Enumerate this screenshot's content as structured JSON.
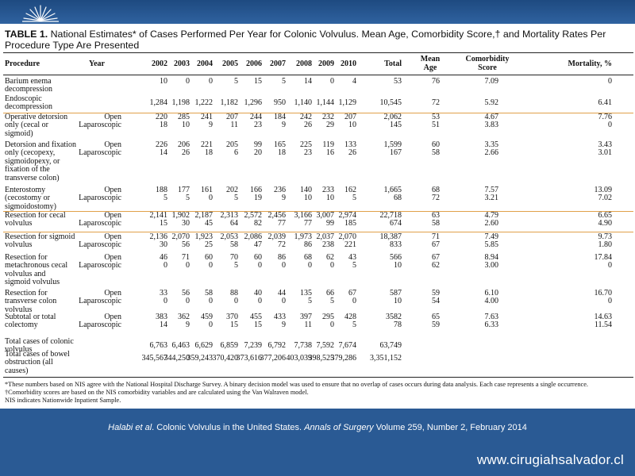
{
  "table": {
    "number": "TABLE 1.",
    "title": "National Estimates* of Cases Performed Per Year for Colonic Volvulus. Mean Age, Comorbidity Score,† and Mortality Rates Per Procedure Type Are Presented",
    "headers": {
      "procedure": "Procedure",
      "year": "Year",
      "years": [
        "2002",
        "2003",
        "2004",
        "2005",
        "2006",
        "2007",
        "2008",
        "2009",
        "2010"
      ],
      "total": "Total",
      "mean_age": "Mean\nAge",
      "comorbidity": "Comorbidity\nScore",
      "mortality": "Mortality, %"
    },
    "rows": [
      {
        "procedure": "Barium enema\ndecompression",
        "types": [
          ""
        ],
        "values": [
          [
            "10",
            "0",
            "0",
            "5",
            "15",
            "5",
            "14",
            "0",
            "4"
          ]
        ],
        "total": [
          "53"
        ],
        "age": [
          "76"
        ],
        "comorbidity": [
          "7.09"
        ],
        "mortality": [
          "0"
        ]
      },
      {
        "procedure": "Endoscopic\ndecompression",
        "types": [
          ""
        ],
        "values": [
          [
            "1,284",
            "1,198",
            "1,222",
            "1,182",
            "1,296",
            "950",
            "1,140",
            "1,144",
            "1,129"
          ]
        ],
        "total": [
          "10,545"
        ],
        "age": [
          "72"
        ],
        "comorbidity": [
          "5.92"
        ],
        "mortality": [
          "6.41"
        ]
      },
      {
        "procedure": "Operative detorsion\nonly (cecal or\nsigmoid)",
        "types": [
          "Open",
          "Laparoscopic"
        ],
        "values": [
          [
            "220",
            "285",
            "241",
            "207",
            "244",
            "184",
            "242",
            "232",
            "207"
          ],
          [
            "18",
            "10",
            "9",
            "11",
            "23",
            "9",
            "26",
            "29",
            "10"
          ]
        ],
        "total": [
          "2,062",
          "145"
        ],
        "age": [
          "53",
          "51"
        ],
        "comorbidity": [
          "4.67",
          "3.83"
        ],
        "mortality": [
          "7.76",
          "0"
        ]
      },
      {
        "procedure": "Detorsion and fixation\nonly (cecopexy,\nsigmoidopexy, or\nfixation of the\ntransverse colon)",
        "types": [
          "Open",
          "Laparoscopic"
        ],
        "values": [
          [
            "226",
            "206",
            "221",
            "205",
            "99",
            "165",
            "225",
            "119",
            "133"
          ],
          [
            "14",
            "26",
            "18",
            "6",
            "20",
            "18",
            "23",
            "16",
            "26"
          ]
        ],
        "total": [
          "1,599",
          "167"
        ],
        "age": [
          "60",
          "58"
        ],
        "comorbidity": [
          "3.35",
          "2.66"
        ],
        "mortality": [
          "3.43",
          "3.01"
        ]
      },
      {
        "procedure": "Enterostomy\n(cecostomy or\nsigmoidostomy)",
        "types": [
          "Open",
          "Laparoscopic"
        ],
        "values": [
          [
            "188",
            "177",
            "161",
            "202",
            "166",
            "236",
            "140",
            "233",
            "162"
          ],
          [
            "5",
            "5",
            "0",
            "5",
            "19",
            "9",
            "10",
            "10",
            "5"
          ]
        ],
        "total": [
          "1,665",
          "68"
        ],
        "age": [
          "68",
          "72"
        ],
        "comorbidity": [
          "7.57",
          "3.21"
        ],
        "mortality": [
          "13.09",
          "7.02"
        ]
      },
      {
        "procedure": "Resection for cecal\nvolvulus",
        "types": [
          "Open",
          "Laparoscopic"
        ],
        "values": [
          [
            "2,141",
            "1,902",
            "2,187",
            "2,313",
            "2,572",
            "2,456",
            "3,166",
            "3,007",
            "2,974"
          ],
          [
            "15",
            "30",
            "45",
            "64",
            "82",
            "77",
            "77",
            "99",
            "185"
          ]
        ],
        "total": [
          "22,718",
          "674"
        ],
        "age": [
          "63",
          "58"
        ],
        "comorbidity": [
          "4.79",
          "2.60"
        ],
        "mortality": [
          "6.65",
          "4.90"
        ]
      },
      {
        "procedure": "Resection for sigmoid\nvolvulus",
        "types": [
          "Open",
          "Laparoscopic"
        ],
        "values": [
          [
            "2,136",
            "2,070",
            "1,923",
            "2,053",
            "2,086",
            "2,039",
            "1,973",
            "2,037",
            "2,070"
          ],
          [
            "30",
            "56",
            "25",
            "58",
            "47",
            "72",
            "86",
            "238",
            "221"
          ]
        ],
        "total": [
          "18,387",
          "833"
        ],
        "age": [
          "71",
          "67"
        ],
        "comorbidity": [
          "7.49",
          "5.85"
        ],
        "mortality": [
          "9.73",
          "1.80"
        ]
      },
      {
        "procedure": "Resection for\nmetachronous cecal\nvolvulus and\nsigmoid volvulus",
        "types": [
          "Open",
          "Laparoscopic"
        ],
        "values": [
          [
            "46",
            "71",
            "60",
            "70",
            "60",
            "86",
            "68",
            "62",
            "43"
          ],
          [
            "0",
            "0",
            "0",
            "5",
            "0",
            "0",
            "0",
            "0",
            "5"
          ]
        ],
        "total": [
          "566",
          "10"
        ],
        "age": [
          "67",
          "62"
        ],
        "comorbidity": [
          "8.94",
          "3.00"
        ],
        "mortality": [
          "17.84",
          "0"
        ]
      },
      {
        "procedure": "Resection for\ntransverse colon\nvolvulus",
        "types": [
          "Open",
          "Laparoscopic"
        ],
        "values": [
          [
            "33",
            "56",
            "58",
            "88",
            "40",
            "44",
            "135",
            "66",
            "67"
          ],
          [
            "0",
            "0",
            "0",
            "0",
            "0",
            "0",
            "5",
            "5",
            "0"
          ]
        ],
        "total": [
          "587",
          "10"
        ],
        "age": [
          "59",
          "54"
        ],
        "comorbidity": [
          "6.10",
          "4.00"
        ],
        "mortality": [
          "16.70",
          "0"
        ]
      },
      {
        "procedure": "Subtotal or total\ncolectomy",
        "types": [
          "Open",
          "Laparoscopic"
        ],
        "values": [
          [
            "383",
            "362",
            "459",
            "370",
            "455",
            "433",
            "397",
            "295",
            "428"
          ],
          [
            "14",
            "9",
            "0",
            "15",
            "15",
            "9",
            "11",
            "0",
            "5"
          ]
        ],
        "total": [
          "3582",
          "78"
        ],
        "age": [
          "65",
          "59"
        ],
        "comorbidity": [
          "7.63",
          "6.33"
        ],
        "mortality": [
          "14.63",
          "11.54"
        ]
      },
      {
        "procedure": "Total cases of colonic\nvolvulus",
        "types": [
          ""
        ],
        "values": [
          [
            "6,763",
            "6,463",
            "6,629",
            "6,859",
            "7,239",
            "6,792",
            "7,738",
            "7,592",
            "7,674"
          ]
        ],
        "total": [
          "63,749"
        ],
        "age": [
          ""
        ],
        "comorbidity": [
          ""
        ],
        "mortality": [
          ""
        ]
      },
      {
        "procedure": "Total cases of bowel\nobstruction (all\ncauses)",
        "types": [
          ""
        ],
        "values": [
          [
            "345,567",
            "344,250",
            "359,243",
            "370,420",
            "373,616",
            "377,206",
            "403,039",
            "398,525",
            "379,286"
          ]
        ],
        "total": [
          "3,351,152"
        ],
        "age": [
          ""
        ],
        "comorbidity": [
          ""
        ],
        "mortality": [
          ""
        ]
      }
    ],
    "footnotes": [
      "*These numbers based on NIS agree with the National Hospital Discharge Survey. A binary decision model was used to ensure that no overlap of cases occurs during data analysis. Each case represents a single occurrence.",
      "†Comorbidity scores are based on the NIS comorbidity variables and are calculated using the Van Walraven model.",
      "NIS indicates Nationwide Inpatient Sample."
    ]
  },
  "citation": {
    "authors": "Halabi et al",
    "title": ". Colonic Volvulus in the United States.",
    "journal": "Annals of Surgery",
    "volume": "Volume 259, Number 2, February 2014"
  },
  "website": "www.cirugiahsalvador.cl",
  "colors": {
    "background": "#2a5a94",
    "separator_orange": "#e0a14a",
    "paper": "#ffffff"
  }
}
